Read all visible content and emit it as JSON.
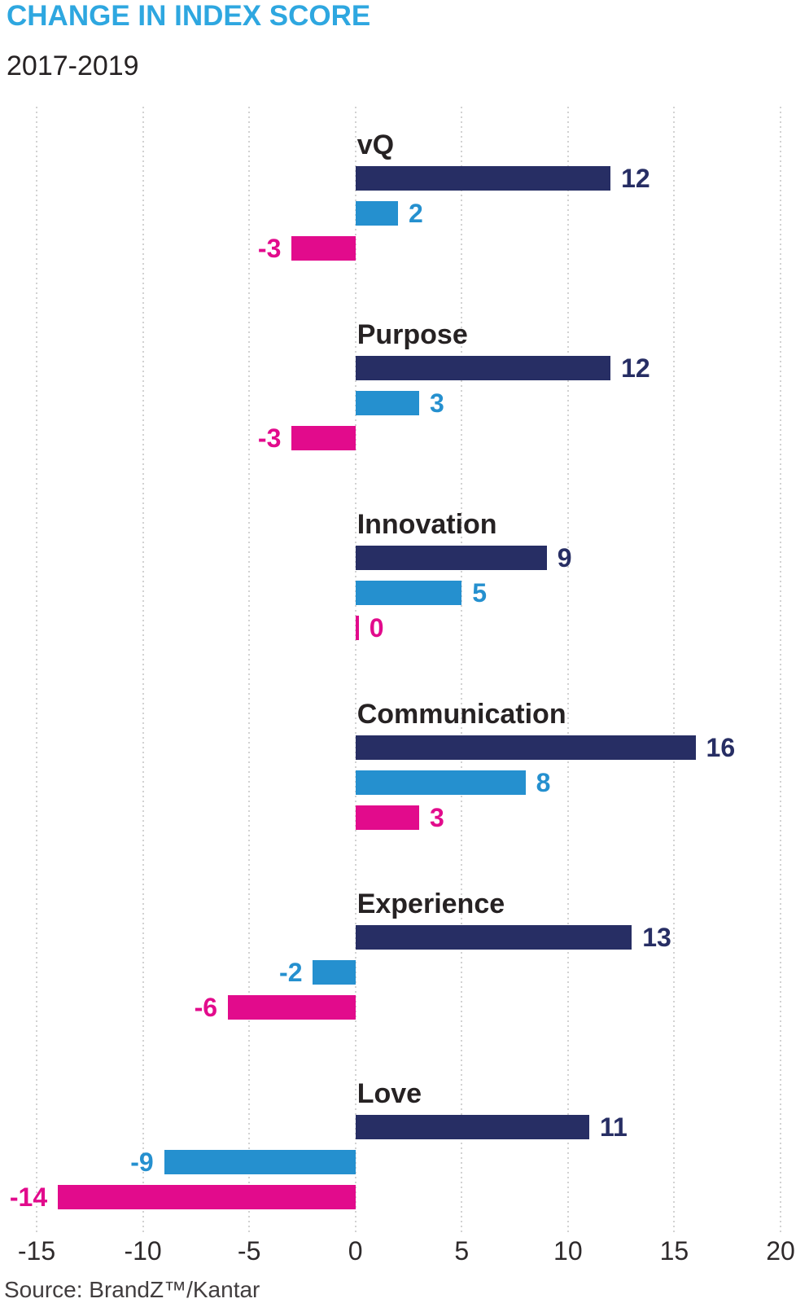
{
  "header": {
    "title": "CHANGE IN INDEX SCORE",
    "subtitle": "2017-2019"
  },
  "source": "Source: BrandZ™/Kantar",
  "colors": {
    "title": "#2ea7e0",
    "navy": "#272e64",
    "blue": "#2590cf",
    "pink": "#e20b8c",
    "text": "#262223",
    "grid": "#d2d2d2"
  },
  "chart_data": {
    "type": "bar",
    "orientation": "horizontal",
    "title": "CHANGE IN INDEX SCORE",
    "subtitle": "2017-2019",
    "categories": [
      "vQ",
      "Purpose",
      "Innovation",
      "Communication",
      "Experience",
      "Love"
    ],
    "series": [
      {
        "name": "navy",
        "color": "#272e64",
        "values": [
          12,
          12,
          9,
          16,
          13,
          11
        ]
      },
      {
        "name": "blue",
        "color": "#2590cf",
        "values": [
          2,
          3,
          5,
          8,
          -2,
          -9
        ]
      },
      {
        "name": "pink",
        "color": "#e20b8c",
        "values": [
          -3,
          -3,
          0,
          3,
          -6,
          -14
        ]
      }
    ],
    "xlim": [
      -15,
      20
    ],
    "x_ticks": [
      -15,
      -10,
      -5,
      0,
      5,
      10,
      15,
      20
    ],
    "grid": "vertical-dotted",
    "data_labels": true,
    "legend": "none"
  }
}
